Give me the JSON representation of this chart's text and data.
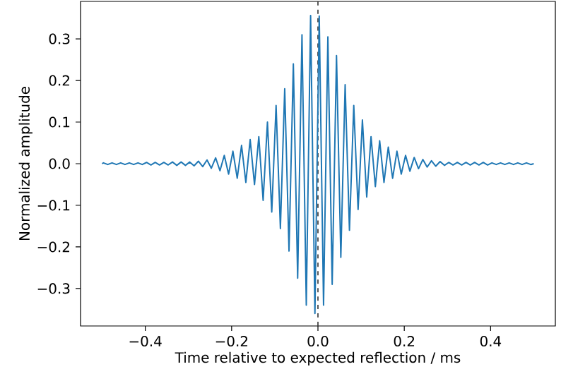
{
  "chart_data": {
    "type": "line",
    "xlabel": "Time relative to expected reflection / ms",
    "ylabel": "Normalized amplitude",
    "xlim": [
      -0.55,
      0.55
    ],
    "ylim": [
      -0.39,
      0.39
    ],
    "xticks": [
      {
        "value": -0.4,
        "label": "−0.4"
      },
      {
        "value": -0.2,
        "label": "−0.2"
      },
      {
        "value": 0.0,
        "label": "0.0"
      },
      {
        "value": 0.2,
        "label": "0.2"
      },
      {
        "value": 0.4,
        "label": "0.4"
      }
    ],
    "yticks": [
      {
        "value": -0.3,
        "label": "−0.3"
      },
      {
        "value": -0.2,
        "label": "−0.2"
      },
      {
        "value": -0.1,
        "label": "−0.1"
      },
      {
        "value": 0.0,
        "label": "0.0"
      },
      {
        "value": 0.1,
        "label": "0.1"
      },
      {
        "value": 0.2,
        "label": "0.2"
      },
      {
        "value": 0.3,
        "label": "0.3"
      }
    ],
    "marker": "none",
    "line_style": "solid",
    "ref_lines": [
      {
        "axis": "x",
        "value": 0,
        "color": "#333333",
        "line_style": "dashed"
      }
    ],
    "series": [
      {
        "color": "#1f77b4",
        "x": [
          -0.5,
          -0.497,
          -0.487,
          -0.477,
          -0.467,
          -0.457,
          -0.447,
          -0.437,
          -0.427,
          -0.417,
          -0.407,
          -0.397,
          -0.387,
          -0.377,
          -0.367,
          -0.357,
          -0.347,
          -0.337,
          -0.327,
          -0.317,
          -0.307,
          -0.297,
          -0.287,
          -0.277,
          -0.267,
          -0.257,
          -0.247,
          -0.237,
          -0.227,
          -0.217,
          -0.207,
          -0.197,
          -0.187,
          -0.177,
          -0.167,
          -0.157,
          -0.147,
          -0.137,
          -0.127,
          -0.117,
          -0.107,
          -0.097,
          -0.087,
          -0.077,
          -0.067,
          -0.057,
          -0.047,
          -0.037,
          -0.027,
          -0.017,
          -0.007,
          0.003,
          0.013,
          0.023,
          0.033,
          0.043,
          0.053,
          0.063,
          0.073,
          0.083,
          0.093,
          0.103,
          0.113,
          0.123,
          0.133,
          0.143,
          0.153,
          0.163,
          0.173,
          0.183,
          0.193,
          0.203,
          0.213,
          0.223,
          0.233,
          0.243,
          0.253,
          0.263,
          0.273,
          0.283,
          0.293,
          0.303,
          0.313,
          0.323,
          0.333,
          0.343,
          0.353,
          0.363,
          0.373,
          0.383,
          0.393,
          0.403,
          0.413,
          0.423,
          0.433,
          0.443,
          0.453,
          0.463,
          0.473,
          0.483,
          0.493,
          0.5
        ],
        "values": [
          0,
          0.002,
          -0.002,
          0.002,
          -0.002,
          0.002,
          -0.002,
          0.002,
          -0.002,
          0.002,
          -0.002,
          0.003,
          -0.003,
          0.003,
          -0.003,
          0.003,
          -0.003,
          0.004,
          -0.004,
          0.004,
          -0.004,
          0.004,
          -0.005,
          0.006,
          -0.007,
          0.009,
          -0.011,
          0.014,
          -0.017,
          0.02,
          -0.025,
          0.03,
          -0.035,
          0.044,
          -0.045,
          0.058,
          -0.05,
          0.065,
          -0.088,
          0.1,
          -0.116,
          0.14,
          -0.156,
          0.18,
          -0.21,
          0.24,
          -0.275,
          0.31,
          -0.34,
          0.356,
          -0.36,
          0.355,
          -0.34,
          0.305,
          -0.29,
          0.26,
          -0.225,
          0.19,
          -0.16,
          0.14,
          -0.11,
          0.105,
          -0.08,
          0.065,
          -0.055,
          0.055,
          -0.045,
          0.04,
          -0.035,
          0.03,
          -0.025,
          0.02,
          -0.018,
          0.015,
          -0.012,
          0.01,
          -0.008,
          0.007,
          -0.006,
          0.005,
          -0.004,
          0.003,
          -0.003,
          0.003,
          -0.003,
          0.003,
          -0.003,
          0.003,
          -0.003,
          0.003,
          -0.003,
          0.002,
          -0.002,
          0.002,
          -0.002,
          0.002,
          -0.002,
          0.002,
          -0.002,
          0.002,
          -0.002,
          0
        ]
      }
    ]
  }
}
